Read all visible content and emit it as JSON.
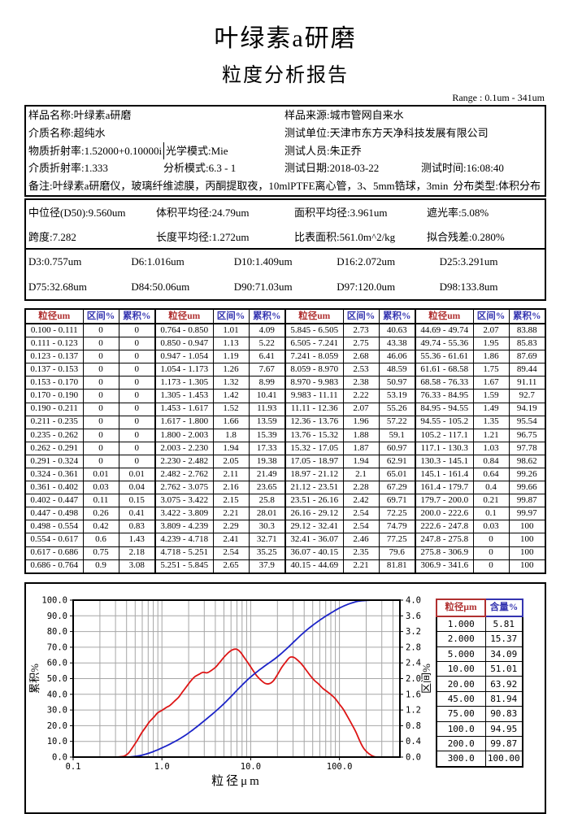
{
  "title": "叶绿素a研磨",
  "subtitle": "粒度分析报告",
  "range_note": "Range : 0.1um - 341um",
  "info": {
    "sample_name": "样品名称:叶绿素a研磨",
    "sample_source": "样品来源:城市管网自来水",
    "medium_name": "介质名称:超纯水",
    "test_unit": "测试单位:天津市东方天净科技发展有限公司",
    "material_ri": "物质折射率:1.52000+0.10000i",
    "optical_model": "光学模式:Mie",
    "tester": "测试人员:朱正乔",
    "medium_ri": "介质折射率:1.333",
    "analysis_mode": "分析模式:6.3 - 1",
    "test_date": "测试日期:2018-03-22",
    "test_time": "测试时间:16:08:40",
    "remark": "备注:叶绿素a研磨仪，玻璃纤维滤膜，丙酮提取夜，10mlPTFE离心管，3、5mm锆球，3min",
    "dist_type": "分布类型:体积分布"
  },
  "summary": {
    "d50": "中位径(D50):9.560um",
    "vol_mean": "体积平均径:24.79um",
    "area_mean": "面积平均径:3.961um",
    "obscuration": "遮光率:5.08%",
    "span": "跨度:7.282",
    "len_mean": "长度平均径:1.272um",
    "ssa": "比表面积:561.0m^2/kg",
    "residual": "拟合残差:0.280%"
  },
  "dvalues": [
    "D3:0.757um",
    "D6:1.016um",
    "D10:1.409um",
    "D16:2.072um",
    "D25:3.291um",
    "D75:32.68um",
    "D84:50.06um",
    "D90:71.03um",
    "D97:120.0um",
    "D98:133.8um"
  ],
  "table": {
    "headers": {
      "size": "粒径um",
      "interval": "区间%",
      "cumulative": "累积%"
    },
    "edges": [
      "0.100",
      "0.111",
      "0.123",
      "0.137",
      "0.153",
      "0.170",
      "0.190",
      "0.211",
      "0.235",
      "0.262",
      "0.291",
      "0.324",
      "0.361",
      "0.402",
      "0.447",
      "0.498",
      "0.554",
      "0.617",
      "0.686",
      "0.764",
      "0.850",
      "0.947",
      "1.054",
      "1.173",
      "1.305",
      "1.453",
      "1.617",
      "1.800",
      "2.003",
      "2.230",
      "2.482",
      "2.762",
      "3.075",
      "3.422",
      "3.809",
      "4.239",
      "4.718",
      "5.251",
      "5.845",
      "6.505",
      "7.241",
      "8.059",
      "8.970",
      "9.983",
      "11.11",
      "12.36",
      "13.76",
      "15.32",
      "17.05",
      "18.97",
      "21.12",
      "23.51",
      "26.16",
      "29.12",
      "32.41",
      "36.07",
      "40.15",
      "44.69",
      "49.74",
      "55.36",
      "61.61",
      "68.58",
      "76.33",
      "84.95",
      "94.55",
      "105.2",
      "117.1",
      "130.3",
      "145.1",
      "161.4",
      "179.7",
      "200.0",
      "222.6",
      "247.8",
      "275.8",
      "306.9",
      "341.6"
    ],
    "interval": [
      "0",
      "0",
      "0",
      "0",
      "0",
      "0",
      "0",
      "0",
      "0",
      "0",
      "0",
      "0.01",
      "0.03",
      "0.11",
      "0.26",
      "0.42",
      "0.6",
      "0.75",
      "0.9",
      "1.01",
      "1.13",
      "1.19",
      "1.26",
      "1.32",
      "1.42",
      "1.52",
      "1.66",
      "1.8",
      "1.94",
      "2.05",
      "2.11",
      "2.16",
      "2.15",
      "2.21",
      "2.29",
      "2.41",
      "2.54",
      "2.65",
      "2.73",
      "2.75",
      "2.68",
      "2.53",
      "2.38",
      "2.22",
      "2.07",
      "1.96",
      "1.88",
      "1.87",
      "1.94",
      "2.1",
      "2.28",
      "2.42",
      "2.54",
      "2.54",
      "2.46",
      "2.35",
      "2.21",
      "2.07",
      "1.95",
      "1.86",
      "1.75",
      "1.67",
      "1.59",
      "1.49",
      "1.35",
      "1.21",
      "1.03",
      "0.84",
      "0.64",
      "0.4",
      "0.21",
      "0.1",
      "0.03",
      "0",
      "0",
      "0"
    ],
    "cumulative": [
      "0",
      "0",
      "0",
      "0",
      "0",
      "0",
      "0",
      "0",
      "0",
      "0",
      "0",
      "0.01",
      "0.04",
      "0.15",
      "0.41",
      "0.83",
      "1.43",
      "2.18",
      "3.08",
      "4.09",
      "5.22",
      "6.41",
      "7.67",
      "8.99",
      "10.41",
      "11.93",
      "13.59",
      "15.39",
      "17.33",
      "19.38",
      "21.49",
      "23.65",
      "25.8",
      "28.01",
      "30.3",
      "32.71",
      "35.25",
      "37.9",
      "40.63",
      "43.38",
      "46.06",
      "48.59",
      "50.97",
      "53.19",
      "55.26",
      "57.22",
      "59.1",
      "60.97",
      "62.91",
      "65.01",
      "67.29",
      "69.71",
      "72.25",
      "74.79",
      "77.25",
      "79.6",
      "81.81",
      "83.88",
      "85.83",
      "87.69",
      "89.44",
      "91.11",
      "92.7",
      "94.19",
      "95.54",
      "96.75",
      "97.78",
      "98.62",
      "99.26",
      "99.66",
      "99.87",
      "99.97",
      "100",
      "100",
      "100",
      "100"
    ]
  },
  "legend_table": {
    "headers": [
      "粒径μm",
      "含量%"
    ],
    "rows": [
      [
        "1.000",
        "5.81"
      ],
      [
        "2.000",
        "15.37"
      ],
      [
        "5.000",
        "34.09"
      ],
      [
        "10.00",
        "51.01"
      ],
      [
        "20.00",
        "63.92"
      ],
      [
        "45.00",
        "81.94"
      ],
      [
        "75.00",
        "90.83"
      ],
      [
        "100.0",
        "94.95"
      ],
      [
        "200.0",
        "99.87"
      ],
      [
        "300.0",
        "100.00"
      ]
    ]
  },
  "chart_data": {
    "type": "line",
    "title": "",
    "xlabel": "粒径μm",
    "ylabel_left": "累积%",
    "ylabel_right": "区间%",
    "xscale": "log",
    "xlim": [
      0.1,
      480
    ],
    "ylim_left": [
      0,
      100
    ],
    "ylim_right": [
      0,
      4
    ],
    "x_tick_values": [
      0.1,
      1,
      10,
      100
    ],
    "x_tick_labels": [
      "0.1",
      "1.0",
      "10.0",
      "100.0"
    ],
    "y_left_tick_step": 10,
    "y_right_tick_step": 0.4,
    "grid": true,
    "series": [
      {
        "name": "累积%",
        "axis": "left",
        "color": "#1c24c8"
      },
      {
        "name": "区间%",
        "axis": "right",
        "color": "#dd1515"
      }
    ],
    "bin_edges_um": [
      0.1,
      0.111,
      0.123,
      0.137,
      0.153,
      0.17,
      0.19,
      0.211,
      0.235,
      0.262,
      0.291,
      0.324,
      0.361,
      0.402,
      0.447,
      0.498,
      0.554,
      0.617,
      0.686,
      0.764,
      0.85,
      0.947,
      1.054,
      1.173,
      1.305,
      1.453,
      1.617,
      1.8,
      2.003,
      2.23,
      2.482,
      2.762,
      3.075,
      3.422,
      3.809,
      4.239,
      4.718,
      5.251,
      5.845,
      6.505,
      7.241,
      8.059,
      8.97,
      9.983,
      11.11,
      12.36,
      13.76,
      15.32,
      17.05,
      18.97,
      21.12,
      23.51,
      26.16,
      29.12,
      32.41,
      36.07,
      40.15,
      44.69,
      49.74,
      55.36,
      61.61,
      68.58,
      76.33,
      84.95,
      94.55,
      105.2,
      117.1,
      130.3,
      145.1,
      161.4,
      179.7,
      200,
      222.6,
      247.8,
      275.8,
      306.9,
      341.6
    ],
    "interval_pct": [
      0,
      0,
      0,
      0,
      0,
      0,
      0,
      0,
      0,
      0,
      0,
      0.01,
      0.03,
      0.11,
      0.26,
      0.42,
      0.6,
      0.75,
      0.9,
      1.01,
      1.13,
      1.19,
      1.26,
      1.32,
      1.42,
      1.52,
      1.66,
      1.8,
      1.94,
      2.05,
      2.11,
      2.16,
      2.15,
      2.21,
      2.29,
      2.41,
      2.54,
      2.65,
      2.73,
      2.75,
      2.68,
      2.53,
      2.38,
      2.22,
      2.07,
      1.96,
      1.88,
      1.87,
      1.94,
      2.1,
      2.28,
      2.42,
      2.54,
      2.54,
      2.46,
      2.35,
      2.21,
      2.07,
      1.95,
      1.86,
      1.75,
      1.67,
      1.59,
      1.49,
      1.35,
      1.21,
      1.03,
      0.84,
      0.64,
      0.4,
      0.21,
      0.1,
      0.03,
      0,
      0,
      0
    ],
    "cumulative_pct": [
      0,
      0,
      0,
      0,
      0,
      0,
      0,
      0,
      0,
      0,
      0,
      0.01,
      0.04,
      0.15,
      0.41,
      0.83,
      1.43,
      2.18,
      3.08,
      4.09,
      5.22,
      6.41,
      7.67,
      8.99,
      10.41,
      11.93,
      13.59,
      15.39,
      17.33,
      19.38,
      21.49,
      23.65,
      25.8,
      28.01,
      30.3,
      32.71,
      35.25,
      37.9,
      40.63,
      43.38,
      46.06,
      48.59,
      50.97,
      53.19,
      55.26,
      57.22,
      59.1,
      60.97,
      62.91,
      65.01,
      67.29,
      69.71,
      72.25,
      74.79,
      77.25,
      79.6,
      81.81,
      83.88,
      85.83,
      87.69,
      89.44,
      91.11,
      92.7,
      94.19,
      95.54,
      96.75,
      97.78,
      98.62,
      99.26,
      99.66,
      99.87,
      99.97,
      100,
      100,
      100,
      100
    ]
  },
  "colors": {
    "header_red": "#b03030",
    "header_blue": "#3434b0",
    "grid": "#a6a6a6",
    "frame": "#000000",
    "curve_red": "#dd1515",
    "curve_blue": "#1c24c8"
  }
}
